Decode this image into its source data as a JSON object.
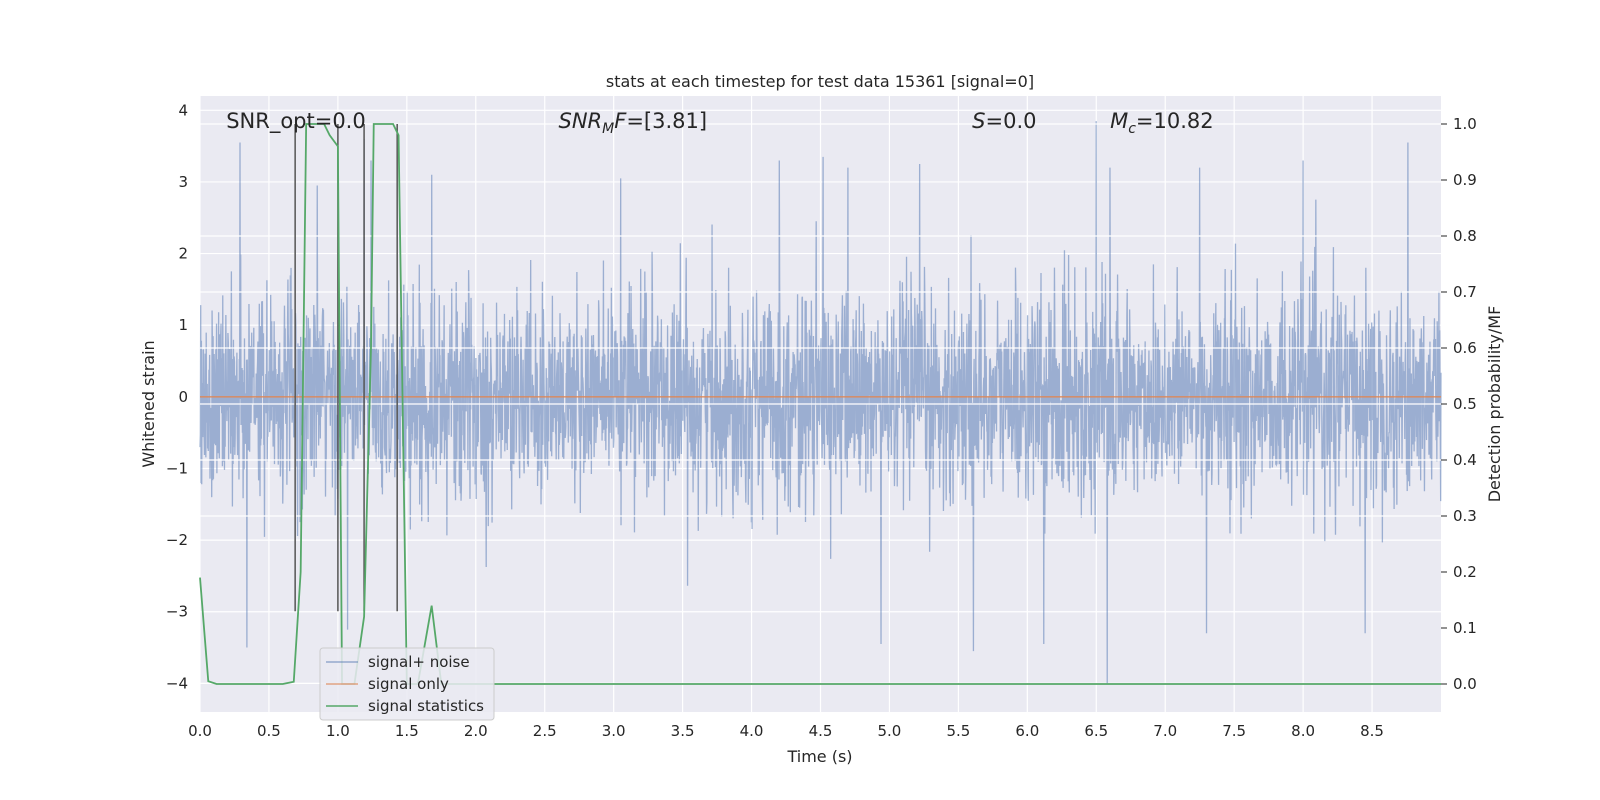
{
  "chart_data": {
    "type": "line",
    "title": "stats at each timestep for test data 15361 [signal=0]",
    "xlabel": "Time (s)",
    "ylabel_left": "Whitened strain",
    "ylabel_right": "Detection probability/MF",
    "xlim": [
      0.0,
      9.0
    ],
    "ylim_left": [
      -4.4,
      4.2
    ],
    "ylim_right": [
      -0.05,
      1.05
    ],
    "x_ticks": [
      0.0,
      0.5,
      1.0,
      1.5,
      2.0,
      2.5,
      3.0,
      3.5,
      4.0,
      4.5,
      5.0,
      5.5,
      6.0,
      6.5,
      7.0,
      7.5,
      8.0,
      8.5
    ],
    "x_tick_labels": [
      "0.0",
      "0.5",
      "1.0",
      "1.5",
      "2.0",
      "2.5",
      "3.0",
      "3.5",
      "4.0",
      "4.5",
      "5.0",
      "5.5",
      "6.0",
      "6.5",
      "7.0",
      "7.5",
      "8.0",
      "8.5"
    ],
    "y_left_ticks": [
      4,
      3,
      2,
      1,
      0,
      -1,
      -2,
      -3,
      -4
    ],
    "y_left_tick_labels": [
      "4",
      "3",
      "2",
      "1",
      "0",
      "−1",
      "−2",
      "−3",
      "−4"
    ],
    "y_right_ticks": [
      1.0,
      0.9,
      0.8,
      0.7,
      0.6,
      0.5,
      0.4,
      0.3,
      0.2,
      0.1,
      0.0
    ],
    "y_right_tick_labels": [
      "1.0",
      "0.9",
      "0.8",
      "0.7",
      "0.6",
      "0.5",
      "0.4",
      "0.3",
      "0.2",
      "0.1",
      "0.0"
    ],
    "grid": true,
    "background": "#eaeaf2",
    "legend_position": "lower-left",
    "annotations": [
      {
        "html": "SNR_opt=0.0",
        "x": 0.19,
        "y": 3.85
      },
      {
        "html": "<tspan font-style=\"italic\">SNR</tspan><tspan font-style=\"italic\" font-size=\"14\" dy=\"5\">M</tspan><tspan font-style=\"italic\" dy=\"-5\">F</tspan>=[3.81]",
        "x": 2.6,
        "y": 3.85
      },
      {
        "html": "<tspan font-style=\"italic\">S</tspan>=0.0",
        "x": 5.6,
        "y": 3.85
      },
      {
        "html": "<tspan font-style=\"italic\">M</tspan><tspan font-style=\"italic\" font-size=\"14\" dy=\"5\">c</tspan><tspan dy=\"-5\">=10.82</tspan>",
        "x": 6.6,
        "y": 3.85
      }
    ],
    "vertical_markers": [
      {
        "x": 0.69,
        "color": "#555555"
      },
      {
        "x": 1.0,
        "color": "#555555"
      },
      {
        "x": 1.19,
        "color": "#555555"
      },
      {
        "x": 1.43,
        "color": "#555555"
      }
    ],
    "series": [
      {
        "name": "signal+ noise",
        "color": "#4c72b0",
        "axis": "left",
        "kind": "noise",
        "samples": 3600,
        "amplitude_sigma": 0.72,
        "visible_peaks": [
          [
            0.29,
            3.55
          ],
          [
            0.85,
            2.95
          ],
          [
            1.19,
            3.6
          ],
          [
            1.24,
            3.3
          ],
          [
            1.68,
            3.1
          ],
          [
            3.05,
            3.05
          ],
          [
            4.2,
            3.3
          ],
          [
            4.52,
            3.35
          ],
          [
            4.7,
            3.2
          ],
          [
            5.22,
            3.25
          ],
          [
            6.5,
            3.85
          ],
          [
            6.6,
            3.2
          ],
          [
            7.25,
            3.2
          ],
          [
            7.3,
            3.3
          ],
          [
            8.0,
            3.3
          ],
          [
            8.76,
            3.55
          ]
        ],
        "visible_troughs": [
          [
            0.34,
            -3.5
          ],
          [
            1.07,
            -3.25
          ],
          [
            4.94,
            -3.45
          ],
          [
            5.61,
            -3.55
          ],
          [
            6.12,
            -3.45
          ],
          [
            6.58,
            -4.0
          ],
          [
            7.3,
            -3.3
          ],
          [
            8.45,
            -3.3
          ]
        ]
      },
      {
        "name": "signal only",
        "color": "#dd8452",
        "axis": "left",
        "kind": "line",
        "x": [
          0.0,
          9.0
        ],
        "y": [
          0.0,
          0.0
        ]
      },
      {
        "name": "signal statistics",
        "color": "#55a868",
        "axis": "right",
        "kind": "line",
        "x": [
          0.0,
          0.06,
          0.12,
          0.6,
          0.68,
          0.73,
          0.77,
          0.9,
          0.94,
          1.0,
          1.03,
          1.12,
          1.19,
          1.24,
          1.26,
          1.4,
          1.44,
          1.5,
          1.58,
          1.68,
          1.75,
          2.0,
          9.0
        ],
        "y": [
          0.19,
          0.005,
          0.0,
          0.0,
          0.004,
          0.2,
          1.0,
          1.0,
          0.98,
          0.96,
          0.0,
          0.0,
          0.12,
          0.6,
          1.0,
          1.0,
          0.98,
          0.0,
          0.0,
          0.14,
          0.0,
          0.0,
          0.0
        ]
      }
    ],
    "white_hlines_right": [
      1.0,
      0.8,
      0.7,
      0.6,
      0.5,
      0.4,
      0.3
    ]
  }
}
